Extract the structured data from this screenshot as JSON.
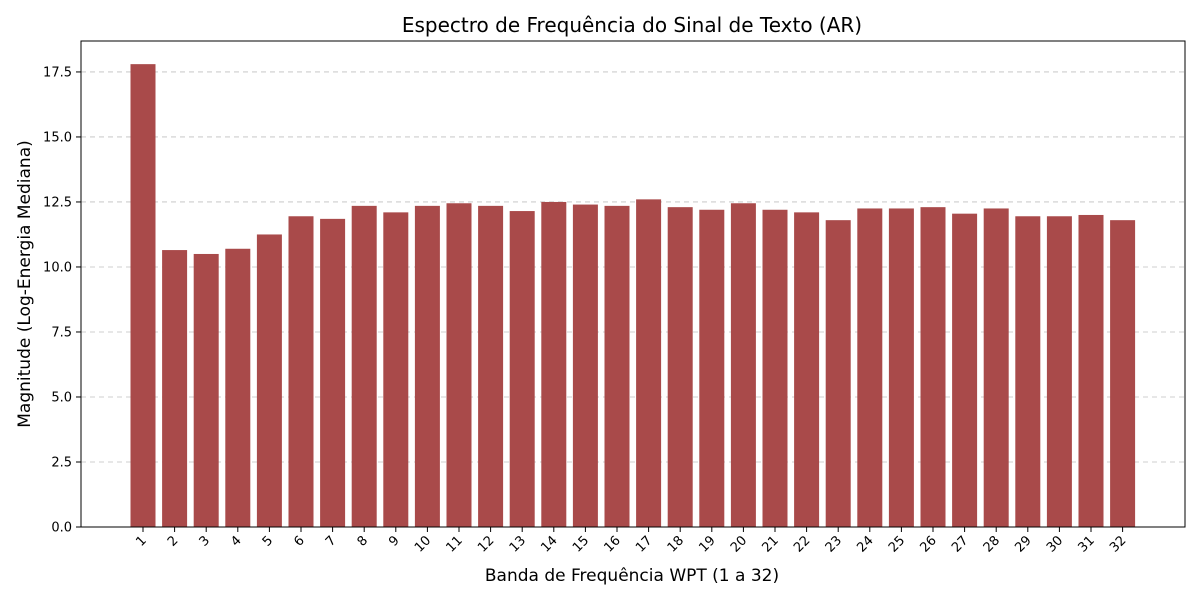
{
  "chart_data": {
    "type": "bar",
    "title": "Espectro de Frequência do Sinal de Texto (AR)",
    "xlabel": "Banda de Frequência WPT (1 a 32)",
    "ylabel": "Magnitude (Log-Energia Mediana)",
    "categories": [
      "1",
      "2",
      "3",
      "4",
      "5",
      "6",
      "7",
      "8",
      "9",
      "10",
      "11",
      "12",
      "13",
      "14",
      "15",
      "16",
      "17",
      "18",
      "19",
      "20",
      "21",
      "22",
      "23",
      "24",
      "25",
      "26",
      "27",
      "28",
      "29",
      "30",
      "31",
      "32"
    ],
    "values": [
      17.8,
      10.65,
      10.5,
      10.7,
      11.25,
      11.95,
      11.85,
      12.35,
      12.1,
      12.35,
      12.45,
      12.35,
      12.15,
      12.5,
      12.4,
      12.35,
      12.6,
      12.3,
      12.2,
      12.45,
      12.2,
      12.1,
      11.8,
      12.25,
      12.25,
      12.3,
      12.05,
      12.25,
      11.95,
      11.95,
      12.0,
      11.8
    ],
    "ylim": [
      0,
      18.69
    ],
    "yticks": [
      "0.0",
      "2.5",
      "5.0",
      "7.5",
      "10.0",
      "12.5",
      "15.0",
      "17.5"
    ],
    "bar_color": "#a94a4a",
    "grid": "y-dashed",
    "legend": "none"
  }
}
